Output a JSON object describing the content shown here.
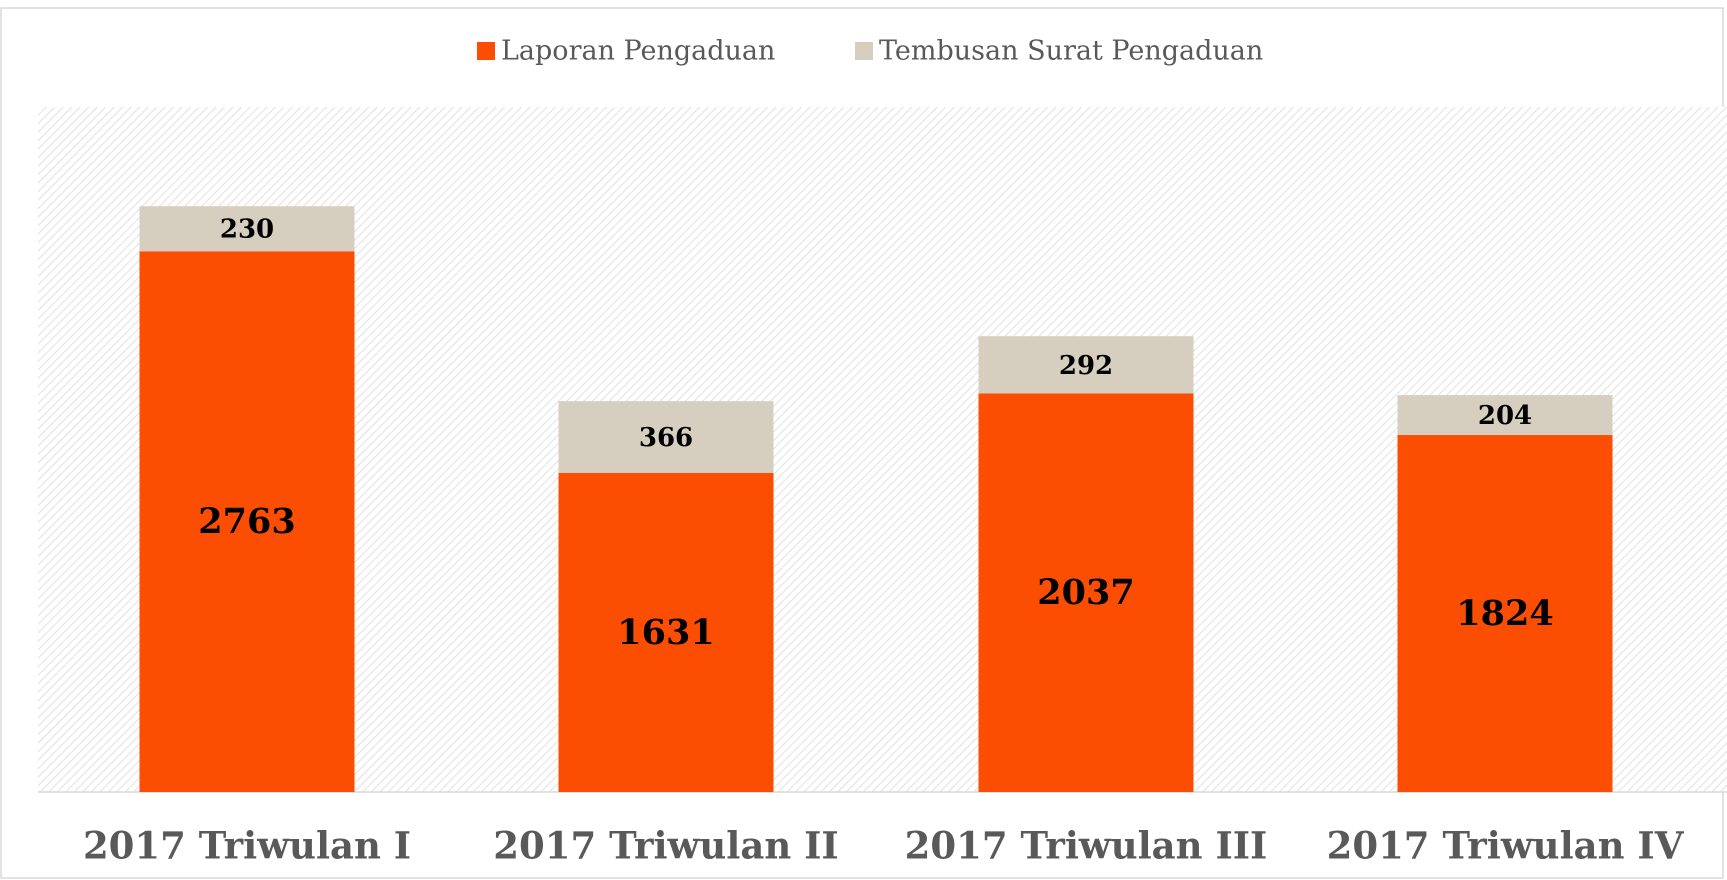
{
  "chart_data": {
    "type": "stacked_bar",
    "categories": [
      "2017 Triwulan I",
      "2017 Triwulan II",
      "2017 Triwulan III",
      "2017 Triwulan IV"
    ],
    "series": [
      {
        "name": "Laporan Pengaduan",
        "color": "#fc4e03",
        "values": [
          2763,
          1631,
          2037,
          1824
        ]
      },
      {
        "name": "Tembusan Surat Pengaduan",
        "color": "#d6cfc0",
        "values": [
          230,
          366,
          292,
          204
        ]
      }
    ],
    "ylim": [
      0,
      3500
    ],
    "legend": "top"
  }
}
